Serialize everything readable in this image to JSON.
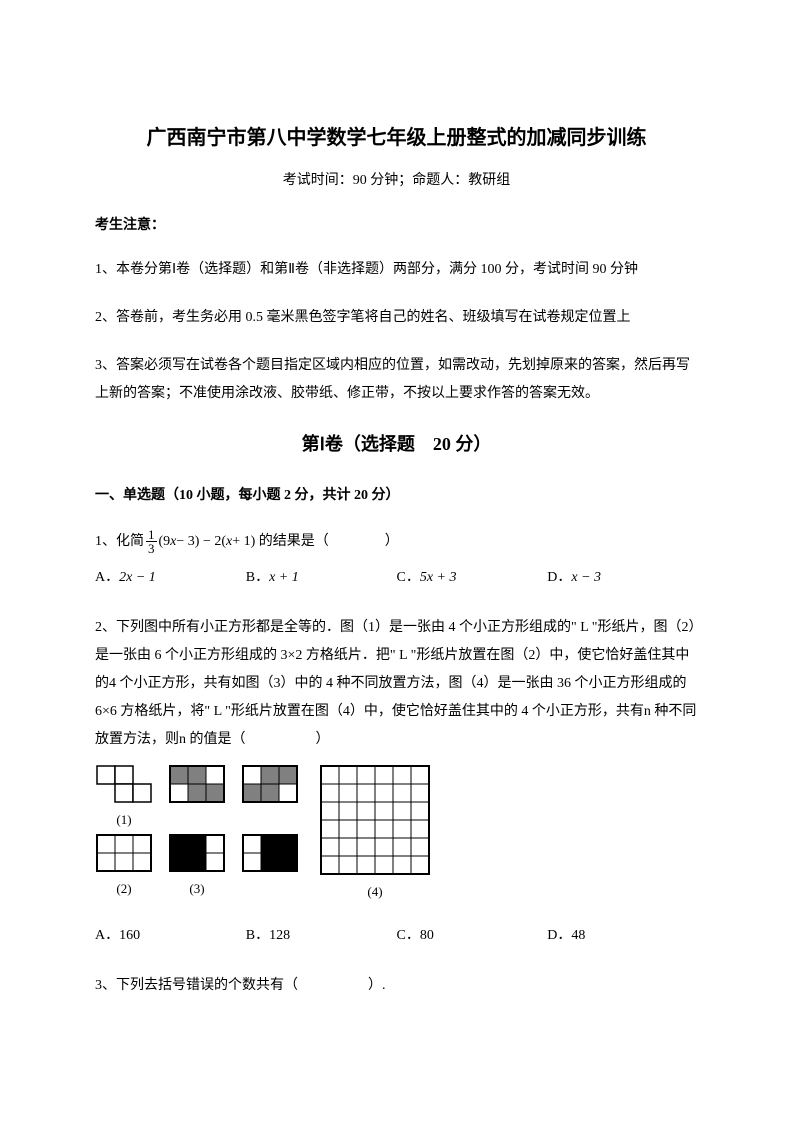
{
  "document": {
    "title": "广西南宁市第八中学数学七年级上册整式的加减同步训练",
    "subtitle": "考试时间：90 分钟；命题人：教研组",
    "notice_header": "考生注意：",
    "notices": [
      "1、本卷分第Ⅰ卷（选择题）和第Ⅱ卷（非选择题）两部分，满分 100 分，考试时间 90 分钟",
      "2、答卷前，考生务必用 0.5 毫米黑色签字笔将自己的姓名、班级填写在试卷规定位置上",
      "3、答案必须写在试卷各个题目指定区域内相应的位置，如需改动，先划掉原来的答案，然后再写上新的答案；不准使用涂改液、胶带纸、修正带，不按以上要求作答的答案无效。"
    ],
    "part_header": "第Ⅰ卷（选择题　20 分）",
    "section_header": "一、单选题（10 小题，每小题 2 分，共计 20 分）",
    "q1": {
      "prefix": "1、化简",
      "frac_num": "1",
      "frac_den": "3",
      "expr": "(9",
      "var1": "x",
      "expr2": " − 3) − 2(",
      "var2": "x",
      "expr3": " + 1) 的结果是（　　　　）",
      "options": {
        "a_label": "A．",
        "a_val": "2x − 1",
        "b_label": "B．",
        "b_val": "x + 1",
        "c_label": "C．",
        "c_val": "5x + 3",
        "d_label": "D．",
        "d_val": "x − 3"
      }
    },
    "q2": {
      "text": "2、下列图中所有小正方形都是全等的．图（1）是一张由 4 个小正方形组成的\" L \"形纸片，图（2）是一张由 6 个小正方形组成的 3×2 方格纸片．把\" L \"形纸片放置在图（2）中，使它恰好盖住其中的4 个小正方形，共有如图（3）中的 4 种不同放置方法，图（4）是一张由 36 个小正方形组成的6×6 方格纸片，将\" L \"形纸片放置在图（4）中，使它恰好盖住其中的 4 个小正方形，共有n 种不同放置方法，则n 的值是（　　　　　）",
      "labels": {
        "f1": "(1)",
        "f2": "(2)",
        "f3": "(3)",
        "f4": "(4)"
      },
      "options": {
        "a": "A．160",
        "b": "B．128",
        "c": "C．80",
        "d": "D．48"
      }
    },
    "q3": {
      "text": "3、下列去括号错误的个数共有（　　　　　）."
    },
    "figures": {
      "cell_size": 18,
      "stroke": "#000000",
      "stroke_width": 1.5,
      "fill_white": "#ffffff",
      "fill_gray": "#808080",
      "fill_black": "#000000",
      "fig1_L": [
        [
          0,
          0
        ],
        [
          1,
          0
        ],
        [
          1,
          1
        ],
        [
          2,
          1
        ]
      ],
      "fig2_grid": {
        "cols": 3,
        "rows": 2
      },
      "fig3a": {
        "cols": 3,
        "rows": 2,
        "gray": [
          [
            0,
            0
          ],
          [
            1,
            0
          ],
          [
            1,
            1
          ],
          [
            2,
            1
          ]
        ]
      },
      "fig3b": {
        "cols": 3,
        "rows": 2,
        "gray": [
          [
            2,
            0
          ],
          [
            0,
            1
          ],
          [
            1,
            1
          ],
          [
            1,
            0
          ]
        ]
      },
      "fig3c": {
        "cols": 3,
        "rows": 2,
        "black": [
          [
            0,
            0
          ],
          [
            1,
            0
          ],
          [
            1,
            1
          ],
          [
            0,
            1
          ]
        ],
        "gray_overlay": []
      },
      "fig3d": {
        "cols": 3,
        "rows": 2,
        "black": [
          [
            1,
            0
          ],
          [
            2,
            0
          ],
          [
            1,
            1
          ],
          [
            2,
            1
          ]
        ]
      },
      "fig4_grid": {
        "cols": 6,
        "rows": 6
      }
    }
  }
}
